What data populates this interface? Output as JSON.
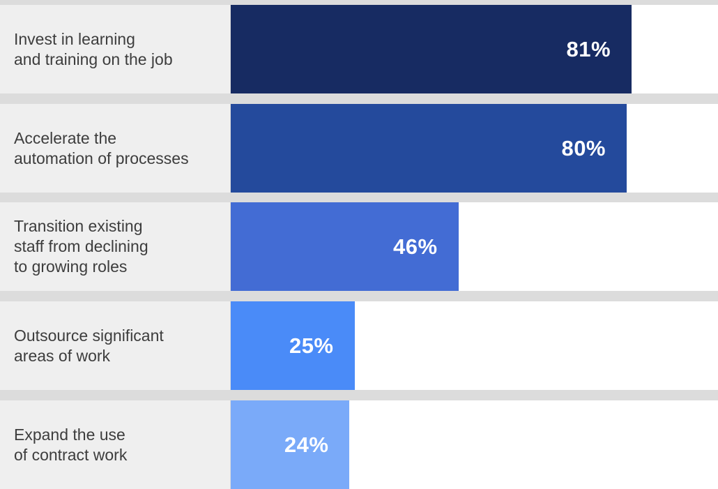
{
  "chart_data": {
    "type": "bar",
    "orientation": "horizontal",
    "categories": [
      "Invest in learning\nand training on the job",
      "Accelerate the\nautomation of processes",
      "Transition existing\nstaff from declining\nto growing roles",
      "Outsource significant\nareas of work",
      "Expand the use\nof contract work"
    ],
    "values": [
      81,
      80,
      46,
      25,
      24
    ],
    "value_labels": [
      "81%",
      "80%",
      "46%",
      "25%",
      "24%"
    ],
    "unit": "%",
    "xlim": [
      0,
      100
    ],
    "colors": [
      "#172b62",
      "#244a9c",
      "#436cd4",
      "#4a8bf8",
      "#7aaaf9"
    ],
    "title": "",
    "xlabel": "",
    "ylabel": "",
    "grid": false,
    "legend": "none"
  }
}
